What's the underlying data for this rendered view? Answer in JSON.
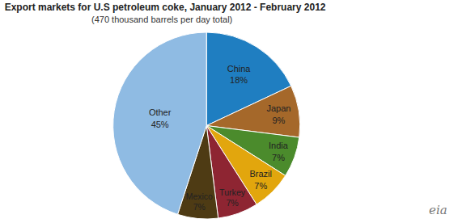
{
  "chart_data": {
    "type": "pie",
    "title": "Export markets for U.S petroleum coke, January 2012 - February 2012",
    "subtitle": "(470 thousand barrels per day total)",
    "categories": [
      "China",
      "Japan",
      "India",
      "Brazil",
      "Turkey",
      "Mexico",
      "Other"
    ],
    "values": [
      18,
      9,
      7,
      7,
      7,
      7,
      45
    ],
    "value_labels": [
      "18%",
      "9%",
      "7%",
      "7%",
      "7%",
      "7%",
      "45%"
    ],
    "colors": [
      "#1f7ec1",
      "#a5682a",
      "#4b8b2c",
      "#e2a60d",
      "#8e2532",
      "#4e3b14",
      "#8fbbe3"
    ],
    "data_labels": true,
    "annotations": [
      "eia"
    ]
  }
}
